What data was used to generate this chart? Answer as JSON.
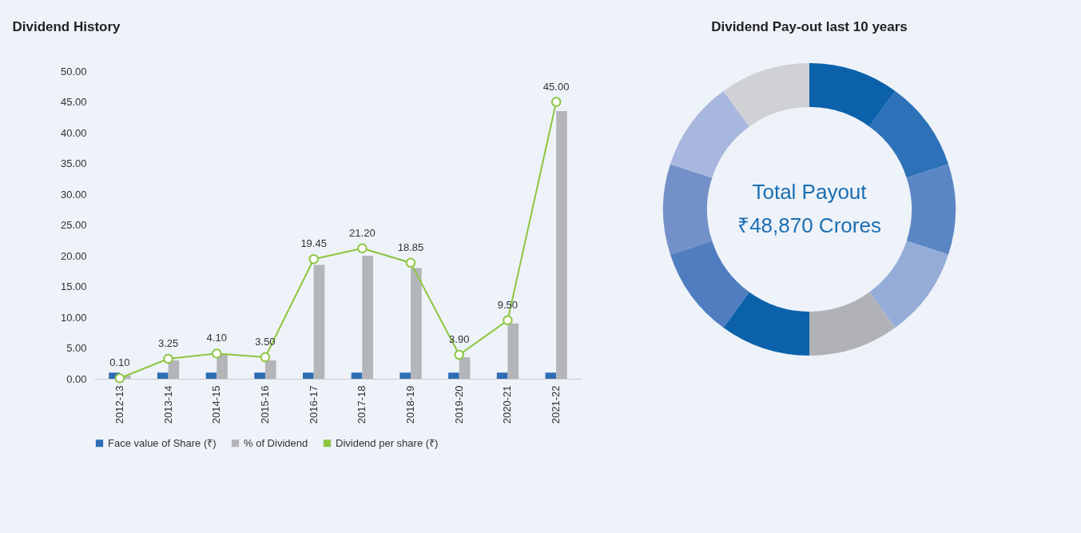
{
  "chart_data": [
    {
      "type": "bar",
      "title": "Dividend History",
      "categories": [
        "2012-13",
        "2013-14",
        "2014-15",
        "2015-16",
        "2016-17",
        "2017-18",
        "2018-19",
        "2019-20",
        "2020-21",
        "2021-22"
      ],
      "series": [
        {
          "name": "Face value of Share (₹)",
          "color": "#2f6db5",
          "values": [
            1,
            1,
            1,
            1,
            1,
            1,
            1,
            1,
            1,
            1
          ]
        },
        {
          "name": "% of Dividend",
          "color": "#b4b5b9",
          "values": [
            0.5,
            3,
            4,
            3,
            18.5,
            20,
            18,
            3.5,
            9,
            43.5
          ]
        },
        {
          "name": "Dividend per share (₹)",
          "type": "line",
          "color": "#8cc63f",
          "values": [
            0.1,
            3.25,
            4.1,
            3.5,
            19.45,
            21.2,
            18.85,
            3.9,
            9.5,
            45.0
          ],
          "value_labels": [
            "0.10",
            "3.25",
            "4.10",
            "3.50",
            "19.45",
            "21.20",
            "18.85",
            "3.90",
            "9.50",
            "45.00"
          ]
        }
      ],
      "ylim": [
        0,
        50
      ],
      "yticks": [
        {
          "value": 0,
          "label": "0.00"
        },
        {
          "value": 5,
          "label": "5.00"
        },
        {
          "value": 10,
          "label": "10.00"
        },
        {
          "value": 15,
          "label": "15.00"
        },
        {
          "value": 20,
          "label": "20.00"
        },
        {
          "value": 25,
          "label": "25.00"
        },
        {
          "value": 30,
          "label": "30.00"
        },
        {
          "value": 35,
          "label": "35.00"
        },
        {
          "value": 40,
          "label": "40.00"
        },
        {
          "value": 45,
          "label": "45.00"
        },
        {
          "value": 50,
          "label": "50.00"
        }
      ],
      "grid": false,
      "legend": "bottom",
      "marker": "circle"
    },
    {
      "type": "donut",
      "title": "Dividend Pay-out last 10 years",
      "categories": [
        null,
        null,
        null,
        null,
        null,
        null,
        null,
        null,
        null,
        null
      ],
      "values": [
        10,
        10,
        10,
        10,
        10,
        10,
        10,
        10,
        10,
        10
      ],
      "colors": [
        "#0b62ab",
        "#2d72b8",
        "#5b86c4",
        "#95acd8",
        "#b0b2b7",
        "#0b62ab",
        "#4f7dbf",
        "#7390c8",
        "#a7b7dd",
        "#cfd1d5"
      ],
      "annotations": [
        "Total Payout",
        "₹48,870 Crores"
      ]
    }
  ]
}
